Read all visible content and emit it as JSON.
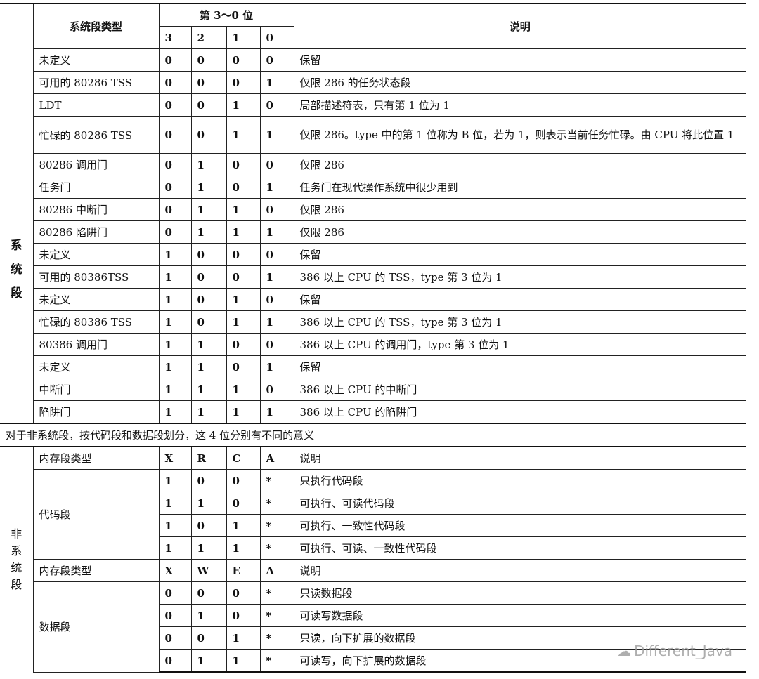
{
  "system": {
    "side_label": "系统段",
    "header": {
      "type": "系统段类型",
      "bits_group": "第 3～0 位",
      "bits": [
        "3",
        "2",
        "1",
        "0"
      ],
      "desc": "说明"
    },
    "rows": [
      {
        "type": "未定义",
        "bits": [
          "0",
          "0",
          "0",
          "0"
        ],
        "desc": "保留"
      },
      {
        "type": "可用的 80286 TSS",
        "bits": [
          "0",
          "0",
          "0",
          "1"
        ],
        "desc": "仅限 286 的任务状态段"
      },
      {
        "type": "LDT",
        "bits": [
          "0",
          "0",
          "1",
          "0"
        ],
        "desc": "局部描述符表，只有第 1 位为 1"
      },
      {
        "type": "忙碌的 80286 TSS",
        "bits": [
          "0",
          "0",
          "1",
          "1"
        ],
        "desc": "仅限 286。type 中的第 1 位称为 B 位，若为 1，则表示当前任务忙碌。由 CPU 将此位置 1"
      },
      {
        "type": "80286 调用门",
        "bits": [
          "0",
          "1",
          "0",
          "0"
        ],
        "desc": "仅限 286"
      },
      {
        "type": "任务门",
        "bits": [
          "0",
          "1",
          "0",
          "1"
        ],
        "desc": "任务门在现代操作系统中很少用到"
      },
      {
        "type": "80286 中断门",
        "bits": [
          "0",
          "1",
          "1",
          "0"
        ],
        "desc": "仅限 286"
      },
      {
        "type": "80286 陷阱门",
        "bits": [
          "0",
          "1",
          "1",
          "1"
        ],
        "desc": "仅限 286"
      },
      {
        "type": "未定义",
        "bits": [
          "1",
          "0",
          "0",
          "0"
        ],
        "desc": "保留"
      },
      {
        "type": "可用的 80386TSS",
        "bits": [
          "1",
          "0",
          "0",
          "1"
        ],
        "desc": "386 以上 CPU 的 TSS，type 第 3 位为 1"
      },
      {
        "type": "未定义",
        "bits": [
          "1",
          "0",
          "1",
          "0"
        ],
        "desc": "保留"
      },
      {
        "type": "忙碌的 80386 TSS",
        "bits": [
          "1",
          "0",
          "1",
          "1"
        ],
        "desc": "386 以上 CPU 的 TSS，type 第 3 位为 1"
      },
      {
        "type": "80386 调用门",
        "bits": [
          "1",
          "1",
          "0",
          "0"
        ],
        "desc": "386 以上 CPU 的调用门，type 第 3 位为 1"
      },
      {
        "type": "未定义",
        "bits": [
          "1",
          "1",
          "0",
          "1"
        ],
        "desc": "保留"
      },
      {
        "type": "中断门",
        "bits": [
          "1",
          "1",
          "1",
          "0"
        ],
        "desc": "386 以上 CPU 的中断门"
      },
      {
        "type": "陷阱门",
        "bits": [
          "1",
          "1",
          "1",
          "1"
        ],
        "desc": "386 以上 CPU 的陷阱门"
      }
    ]
  },
  "note": "对于非系统段，按代码段和数据段划分，这 4 位分别有不同的意义",
  "non_system": {
    "side_label": "非系统段",
    "code": {
      "header": {
        "type": "内存段类型",
        "bits": [
          "X",
          "R",
          "C",
          "A"
        ],
        "desc": "说明"
      },
      "label": "代码段",
      "rows": [
        {
          "bits": [
            "1",
            "0",
            "0",
            "*"
          ],
          "desc": "只执行代码段"
        },
        {
          "bits": [
            "1",
            "1",
            "0",
            "*"
          ],
          "desc": "可执行、可读代码段"
        },
        {
          "bits": [
            "1",
            "0",
            "1",
            "*"
          ],
          "desc": "可执行、一致性代码段"
        },
        {
          "bits": [
            "1",
            "1",
            "1",
            "*"
          ],
          "desc": "可执行、可读、一致性代码段"
        }
      ]
    },
    "data": {
      "header": {
        "type": "内存段类型",
        "bits": [
          "X",
          "W",
          "E",
          "A"
        ],
        "desc": "说明"
      },
      "label": "数据段",
      "rows": [
        {
          "bits": [
            "0",
            "0",
            "0",
            "*"
          ],
          "desc": "只读数据段"
        },
        {
          "bits": [
            "0",
            "1",
            "0",
            "*"
          ],
          "desc": "可读写数据段"
        },
        {
          "bits": [
            "0",
            "0",
            "1",
            "*"
          ],
          "desc": "只读，向下扩展的数据段"
        },
        {
          "bits": [
            "0",
            "1",
            "1",
            "*"
          ],
          "desc": "可读写，向下扩展的数据段"
        }
      ]
    }
  },
  "watermark": "Different_Java"
}
